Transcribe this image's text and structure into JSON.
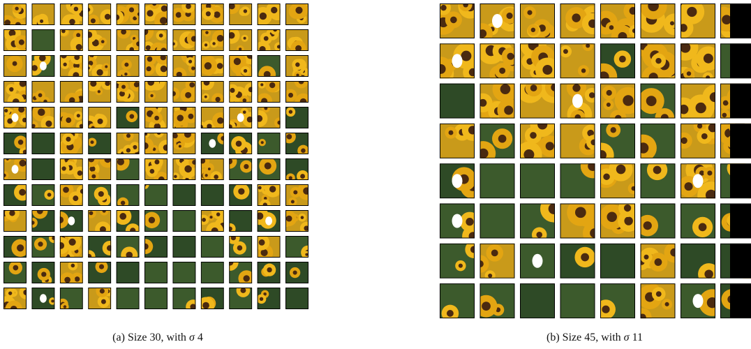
{
  "subfigures": [
    {
      "label": "(a)",
      "text": "Size 30, with",
      "symbol": "σ",
      "value": 4
    },
    {
      "label": "(b)",
      "text": "Size 45, with",
      "symbol": "σ",
      "value": 11
    }
  ]
}
